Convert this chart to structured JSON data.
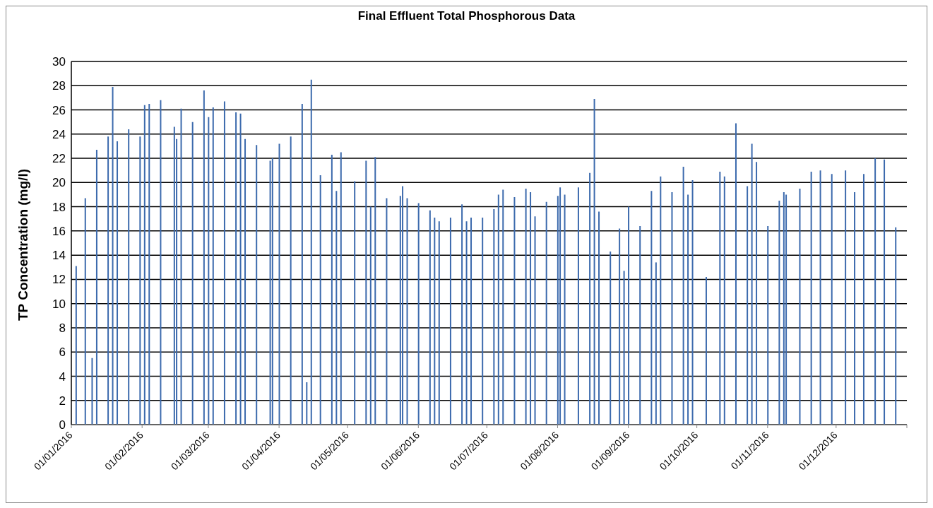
{
  "chart_data": {
    "type": "bar",
    "title": "Final Effluent Total Phosphorous Data",
    "ylabel": "TP Concentration (mg/l)",
    "x": [
      "2016-01-03",
      "2016-01-07",
      "2016-01-10",
      "2016-01-12",
      "2016-01-17",
      "2016-01-19",
      "2016-01-21",
      "2016-01-26",
      "2016-01-31",
      "2016-02-02",
      "2016-02-04",
      "2016-02-09",
      "2016-02-15",
      "2016-02-16",
      "2016-02-18",
      "2016-02-23",
      "2016-02-28",
      "2016-03-01",
      "2016-03-03",
      "2016-03-08",
      "2016-03-13",
      "2016-03-15",
      "2016-03-17",
      "2016-03-22",
      "2016-03-28",
      "2016-03-29",
      "2016-04-01",
      "2016-04-06",
      "2016-04-11",
      "2016-04-13",
      "2016-04-15",
      "2016-04-19",
      "2016-04-24",
      "2016-04-26",
      "2016-04-28",
      "2016-05-04",
      "2016-05-09",
      "2016-05-11",
      "2016-05-13",
      "2016-05-18",
      "2016-05-24",
      "2016-05-25",
      "2016-05-27",
      "2016-06-01",
      "2016-06-06",
      "2016-06-08",
      "2016-06-10",
      "2016-06-15",
      "2016-06-20",
      "2016-06-22",
      "2016-06-24",
      "2016-06-29",
      "2016-07-04",
      "2016-07-06",
      "2016-07-08",
      "2016-07-13",
      "2016-07-18",
      "2016-07-20",
      "2016-07-22",
      "2016-07-27",
      "2016-08-01",
      "2016-08-02",
      "2016-08-04",
      "2016-08-10",
      "2016-08-15",
      "2016-08-17",
      "2016-08-19",
      "2016-08-24",
      "2016-08-28",
      "2016-08-30",
      "2016-09-01",
      "2016-09-06",
      "2016-09-11",
      "2016-09-13",
      "2016-09-15",
      "2016-09-20",
      "2016-09-25",
      "2016-09-27",
      "2016-09-29",
      "2016-10-05",
      "2016-10-11",
      "2016-10-13",
      "2016-10-18",
      "2016-10-23",
      "2016-10-25",
      "2016-10-27",
      "2016-11-01",
      "2016-11-06",
      "2016-11-08",
      "2016-11-09",
      "2016-11-15",
      "2016-11-20",
      "2016-11-24",
      "2016-11-29",
      "2016-12-05",
      "2016-12-09",
      "2016-12-13",
      "2016-12-18",
      "2016-12-22",
      "2016-12-27"
    ],
    "values": [
      13.1,
      18.7,
      5.5,
      22.7,
      23.8,
      27.9,
      23.4,
      24.4,
      23.8,
      26.4,
      26.5,
      26.8,
      24.6,
      23.6,
      26.1,
      25.0,
      27.6,
      25.4,
      26.2,
      26.7,
      25.8,
      25.7,
      23.6,
      23.1,
      21.8,
      22.0,
      23.2,
      23.8,
      26.5,
      3.5,
      28.5,
      20.6,
      22.3,
      19.3,
      22.5,
      20.1,
      21.8,
      18.0,
      22.1,
      18.7,
      18.9,
      19.7,
      18.7,
      18.3,
      17.7,
      17.1,
      16.8,
      17.1,
      18.2,
      16.8,
      17.1,
      17.1,
      17.8,
      19.0,
      19.4,
      18.8,
      19.5,
      19.2,
      17.2,
      18.4,
      18.9,
      19.6,
      19.0,
      19.6,
      20.8,
      26.9,
      17.6,
      14.3,
      16.2,
      12.7,
      18.0,
      16.4,
      19.3,
      13.4,
      20.5,
      19.2,
      21.3,
      19.0,
      20.2,
      12.2,
      20.9,
      20.5,
      24.9,
      19.7,
      23.2,
      21.7,
      16.4,
      18.5,
      19.2,
      19.0,
      19.5,
      20.9,
      21.0,
      20.7,
      21.0,
      19.2,
      20.7,
      22.0,
      21.9,
      16.3
    ],
    "color": "#3c6aad",
    "xlim": [
      "2016-01-01",
      "2017-01-01"
    ],
    "xticks": [
      {
        "value": "2016-01-01",
        "label": "01/01/2016"
      },
      {
        "value": "2016-02-01",
        "label": "01/02/2016"
      },
      {
        "value": "2016-03-01",
        "label": "01/03/2016"
      },
      {
        "value": "2016-04-01",
        "label": "01/04/2016"
      },
      {
        "value": "2016-05-01",
        "label": "01/05/2016"
      },
      {
        "value": "2016-06-01",
        "label": "01/06/2016"
      },
      {
        "value": "2016-07-01",
        "label": "01/07/2016"
      },
      {
        "value": "2016-08-01",
        "label": "01/08/2016"
      },
      {
        "value": "2016-09-01",
        "label": "01/09/2016"
      },
      {
        "value": "2016-10-01",
        "label": "01/10/2016"
      },
      {
        "value": "2016-11-01",
        "label": "01/11/2016"
      },
      {
        "value": "2016-12-01",
        "label": "01/12/2016"
      },
      {
        "value": "2017-01-01",
        "label": null
      }
    ],
    "ylim": [
      0,
      30
    ],
    "yticks": [
      0,
      2,
      4,
      6,
      8,
      10,
      12,
      14,
      16,
      18,
      20,
      22,
      24,
      26,
      28,
      30
    ],
    "grid": "y"
  }
}
